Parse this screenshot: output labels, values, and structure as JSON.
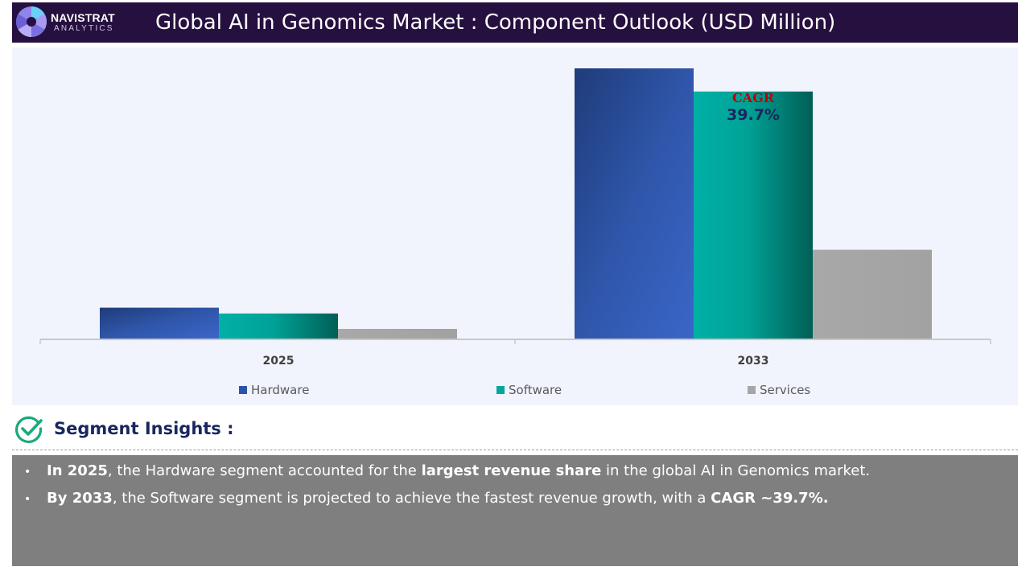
{
  "header": {
    "logo_name": "NAVISTRAT",
    "logo_sub": "ANALYTICS",
    "title": "Global AI in Genomics Market : Component Outlook (USD Million)"
  },
  "colors": {
    "header_bg": "#26103f",
    "hardware": "#2e54a8",
    "software": "#00a79a",
    "services": "#a6a6a6",
    "cagr_label": "#c00000",
    "cagr_value": "#19275e"
  },
  "chart_data": {
    "type": "bar",
    "title": "Global AI in Genomics Market : Component Outlook (USD Million)",
    "categories": [
      "2025",
      "2033"
    ],
    "series": [
      {
        "name": "Hardware",
        "values": [
          32,
          280
        ]
      },
      {
        "name": "Software",
        "values": [
          26,
          256
        ]
      },
      {
        "name": "Services",
        "values": [
          10,
          92
        ]
      }
    ],
    "ylim": [
      0,
      300
    ],
    "grid": false,
    "legend": "bottom",
    "annotation": {
      "label": "CAGR",
      "value": "39.7%"
    }
  },
  "insights": {
    "heading": "Segment Insights :",
    "bullets": [
      {
        "parts": [
          {
            "text": "In 2025",
            "bold": true
          },
          {
            "text": ", the Hardware segment accounted for the ",
            "bold": false
          },
          {
            "text": "largest revenue share",
            "bold": true
          },
          {
            "text": " in the global AI in Genomics market.",
            "bold": false
          }
        ]
      },
      {
        "parts": [
          {
            "text": "By 2033",
            "bold": true
          },
          {
            "text": ", the Software segment is projected to achieve the fastest revenue growth, with a ",
            "bold": false
          },
          {
            "text": "CAGR ~39.7%.",
            "bold": true
          }
        ]
      }
    ]
  }
}
